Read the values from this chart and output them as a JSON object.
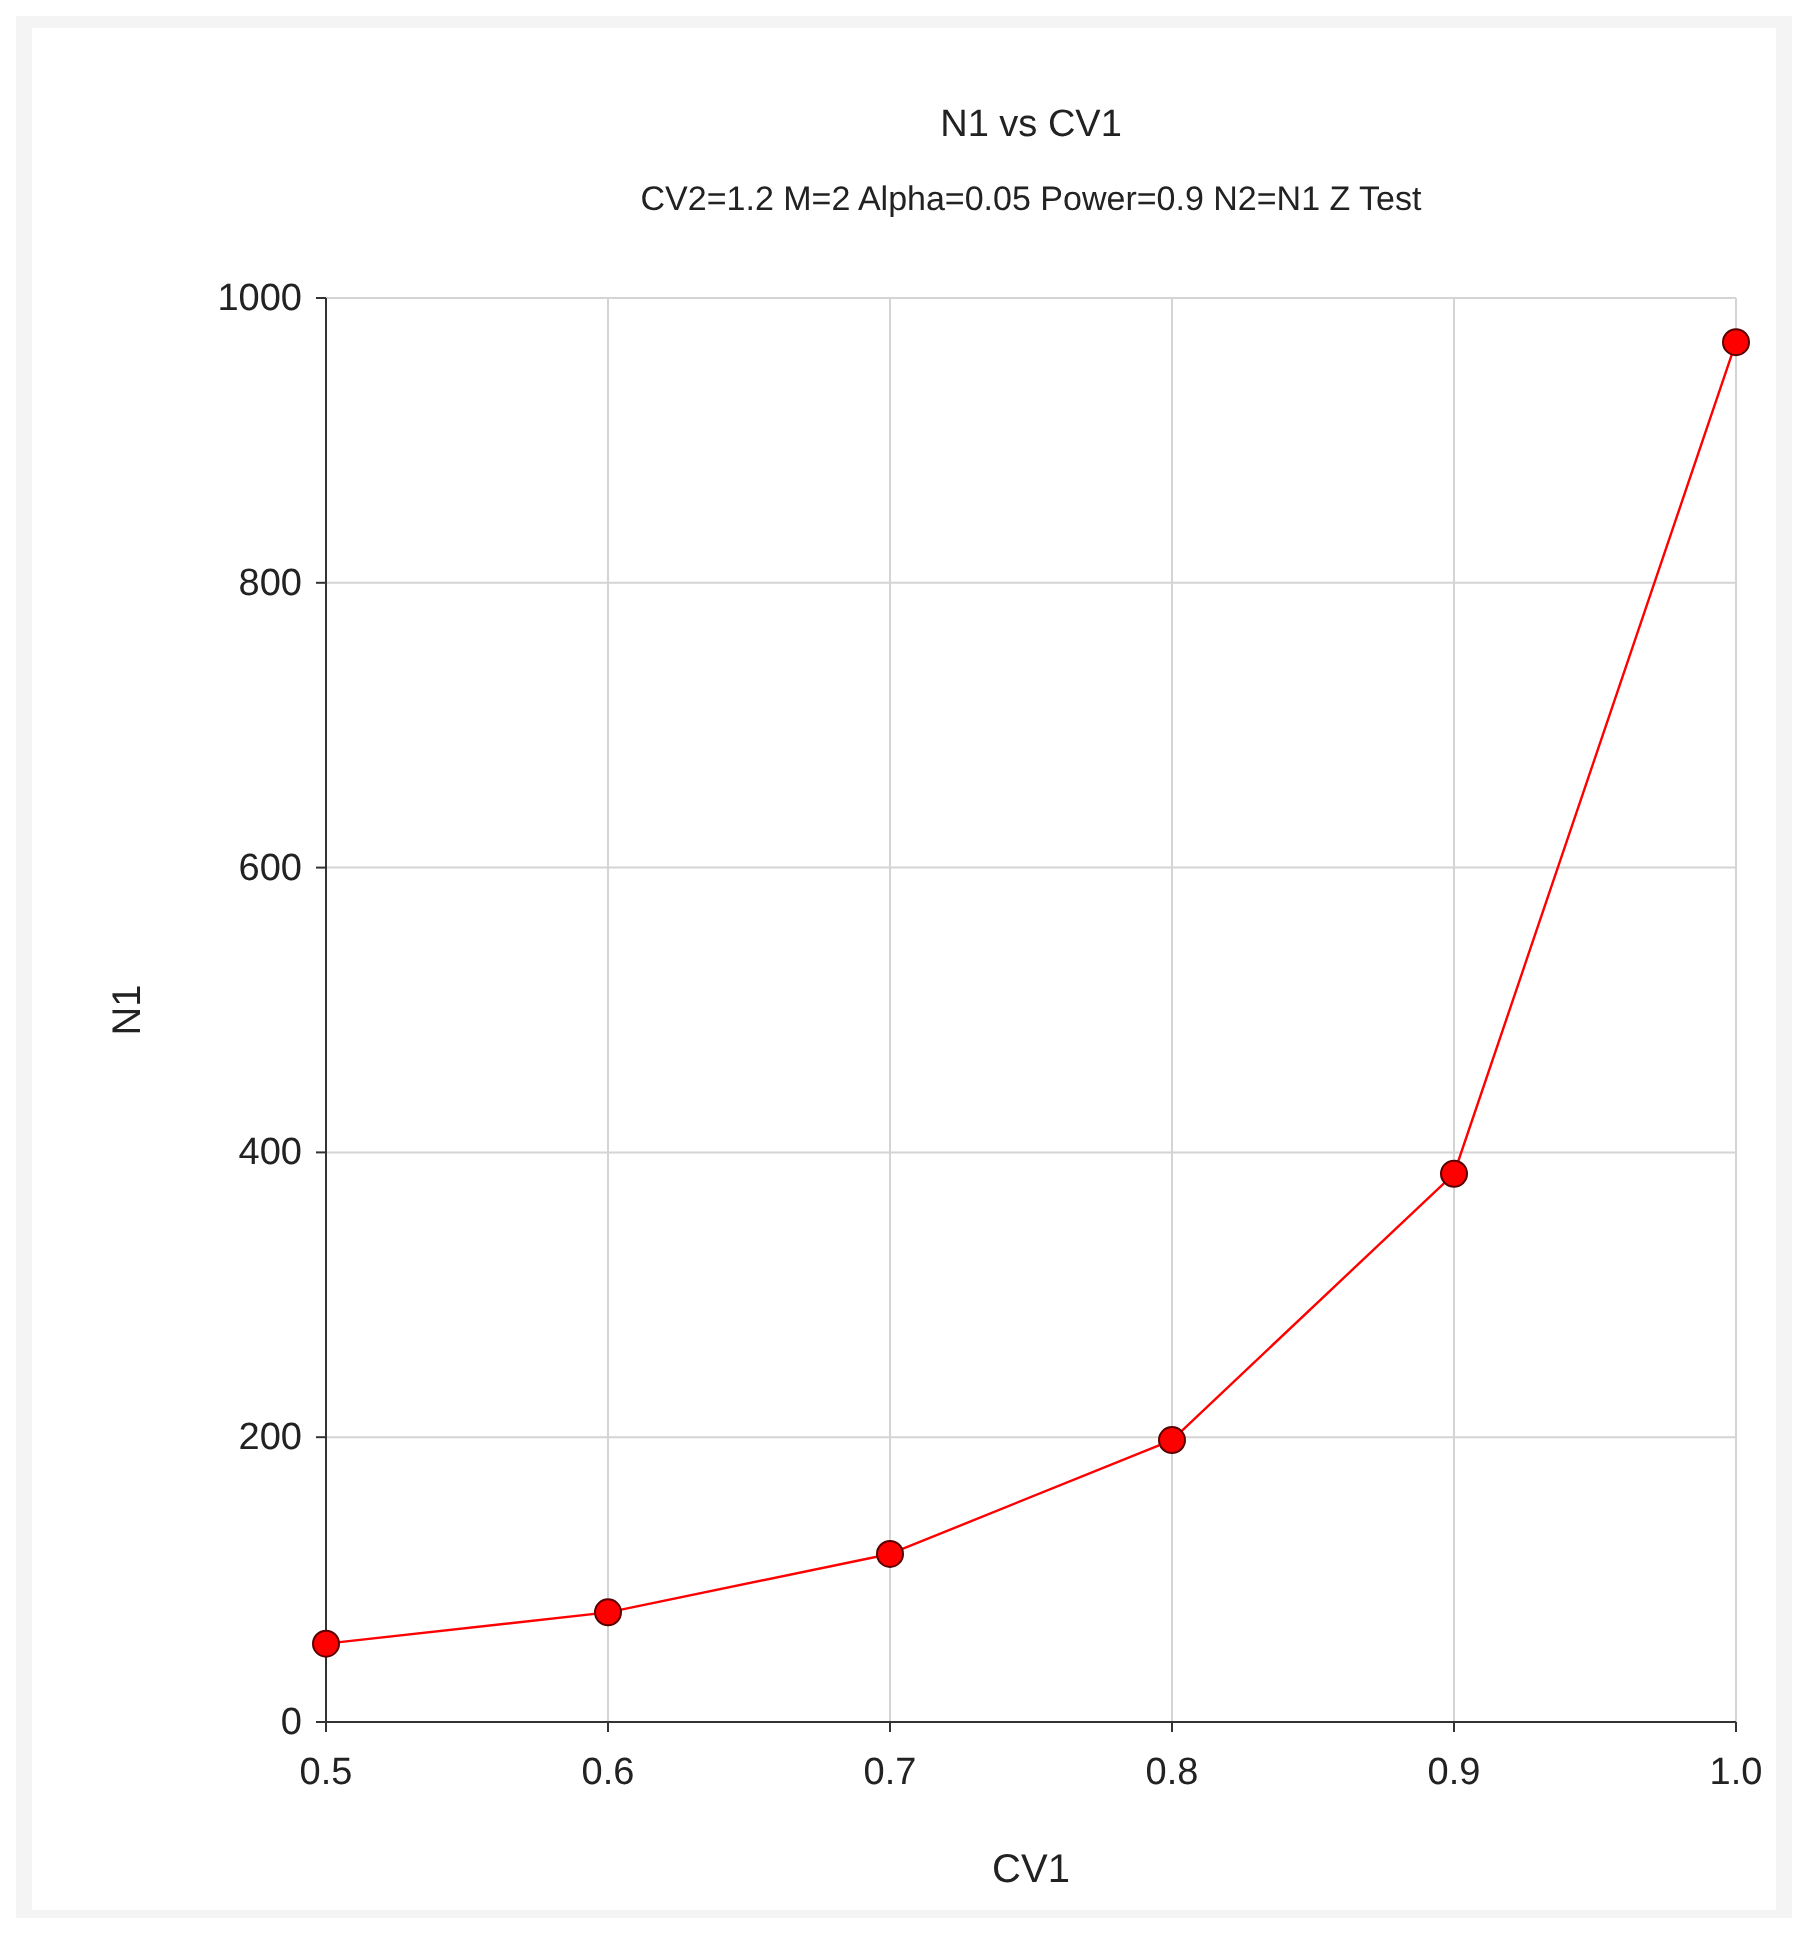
{
  "chart_data": {
    "type": "line",
    "title": "N1 vs CV1",
    "subtitle": "CV2=1.2 M=2 Alpha=0.05 Power=0.9 N2=N1 Z Test",
    "xlabel": "CV1",
    "ylabel": "N1",
    "x": [
      0.5,
      0.6,
      0.7,
      0.8,
      0.9,
      1.0
    ],
    "series": [
      {
        "color": "#ff0000",
        "values": [
          55,
          77,
          118,
          198,
          385,
          969
        ]
      }
    ],
    "xlim": [
      0.5,
      1.0
    ],
    "xticks": [
      {
        "value": 0.5,
        "label": "0.5"
      },
      {
        "value": 0.6,
        "label": "0.6"
      },
      {
        "value": 0.7,
        "label": "0.7"
      },
      {
        "value": 0.8,
        "label": "0.8"
      },
      {
        "value": 0.9,
        "label": "0.9"
      },
      {
        "value": 1.0,
        "label": "1.0"
      }
    ],
    "ylim": [
      0,
      1000
    ],
    "yticks": [
      0,
      200,
      400,
      600,
      800,
      1000
    ],
    "grid": true,
    "marker": "circle",
    "line_style": "solid"
  }
}
